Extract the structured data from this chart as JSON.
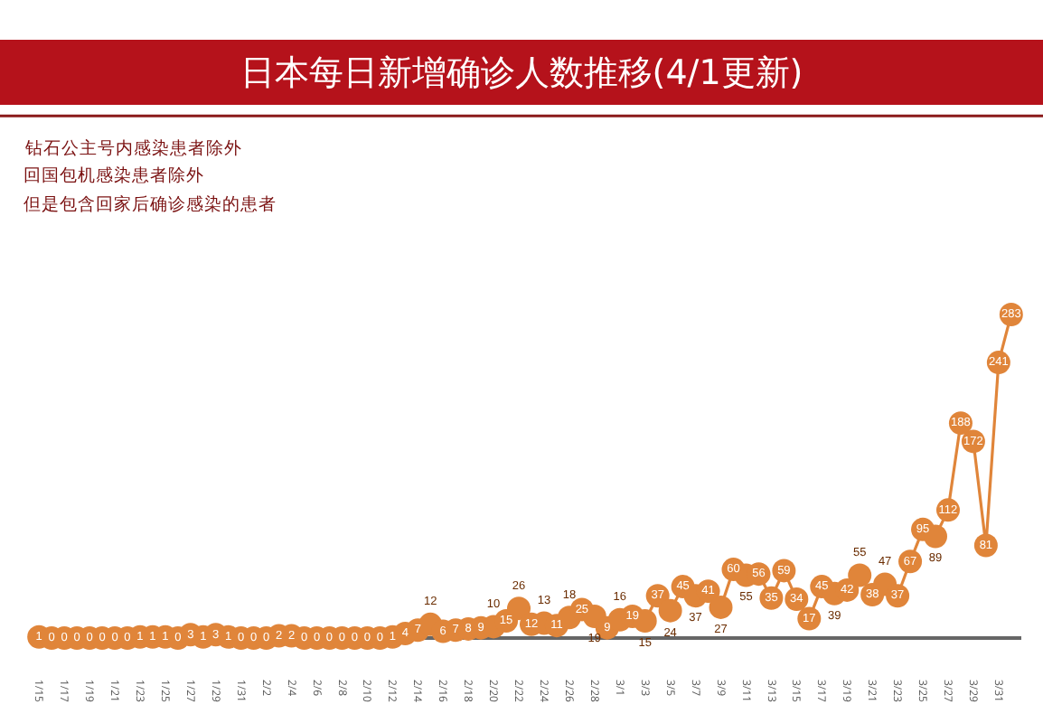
{
  "chart_data": {
    "type": "line",
    "title": "日本每日新增确诊人数推移(4/1更新)",
    "annotations": [
      "钻石公主号内感染患者除外",
      "回国包机感染患者除外",
      "但是包含回家后确诊感染的患者"
    ],
    "categories": [
      "1/15",
      null,
      "1/17",
      null,
      "1/19",
      null,
      "1/21",
      null,
      "1/23",
      null,
      "1/25",
      null,
      "1/27",
      null,
      "1/29",
      null,
      "1/31",
      null,
      "2/2",
      null,
      "2/4",
      null,
      "2/6",
      null,
      "2/8",
      null,
      "2/10",
      null,
      "2/12",
      null,
      "2/14",
      null,
      "2/16",
      null,
      "2/18",
      null,
      "2/20",
      null,
      "2/22",
      null,
      "2/24",
      null,
      "2/26",
      null,
      "2/28",
      null,
      "3/1",
      null,
      "3/3",
      null,
      "3/5",
      null,
      "3/7",
      null,
      "3/9",
      null,
      "3/11",
      null,
      "3/13",
      null,
      "3/15",
      null,
      "3/17",
      null,
      "3/19",
      null,
      "3/21",
      null,
      "3/23",
      null,
      "3/25",
      null,
      "3/27",
      null,
      "3/29",
      null,
      "3/31",
      null
    ],
    "series": [
      {
        "color": "#e0853a",
        "values": [
          1,
          0,
          0,
          0,
          0,
          0,
          0,
          0,
          1,
          1,
          1,
          0,
          3,
          1,
          3,
          1,
          0,
          0,
          0,
          2,
          2,
          0,
          0,
          0,
          0,
          0,
          0,
          0,
          1,
          4,
          7,
          12,
          6,
          7,
          8,
          9,
          10,
          15,
          26,
          12,
          13,
          11,
          18,
          25,
          19,
          9,
          16,
          19,
          15,
          37,
          24,
          45,
          37,
          41,
          27,
          60,
          55,
          56,
          35,
          59,
          34,
          17,
          45,
          39,
          42,
          55,
          38,
          47,
          37,
          67,
          95,
          89,
          112,
          188,
          172,
          81,
          241,
          283
        ]
      }
    ],
    "tick_labels": "x",
    "marker": "circle",
    "line_style": "solid",
    "data_labels": true
  }
}
